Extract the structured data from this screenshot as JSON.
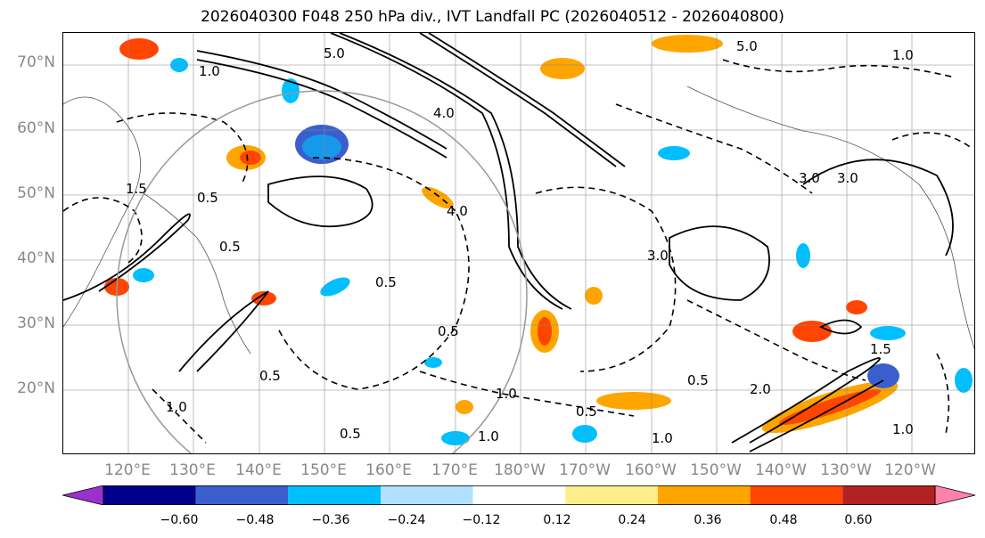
{
  "title": "2026040300 F048 250 hPa div., IVT Landfall PC (2026040512 - 2026040800)",
  "lat_labels": [
    "70°N",
    "60°N",
    "50°N",
    "40°N",
    "30°N",
    "20°N"
  ],
  "lon_labels": [
    "120°E",
    "130°E",
    "140°E",
    "150°E",
    "160°E",
    "170°E",
    "180°W",
    "170°W",
    "160°W",
    "150°W",
    "140°W",
    "130°W",
    "120°W"
  ],
  "colorbar": {
    "colors": [
      "#9932cc",
      "#00008b",
      "#3a5fcd",
      "#00bfff",
      "#b0e2ff",
      "#ffffff",
      "#ffec8b",
      "#ffa500",
      "#ff4500",
      "#b22222",
      "#ff82ab"
    ],
    "tick_labels": [
      "−0.60",
      "−0.48",
      "−0.36",
      "−0.24",
      "−0.12",
      "0.12",
      "0.24",
      "0.36",
      "0.48",
      "0.60"
    ]
  },
  "contour_labels": [
    "5.0",
    "5.0",
    "4.0",
    "4.0",
    "3.0",
    "3.0",
    "3.0",
    "1.0",
    "1.0",
    "1.0",
    "1.0",
    "1.5",
    "1.5",
    "0.5",
    "0.5",
    "0.5",
    "0.5",
    "0.5",
    "0.5",
    "1.0",
    "2.0",
    "0.5",
    "1.0",
    "0.5",
    "1.0"
  ]
}
